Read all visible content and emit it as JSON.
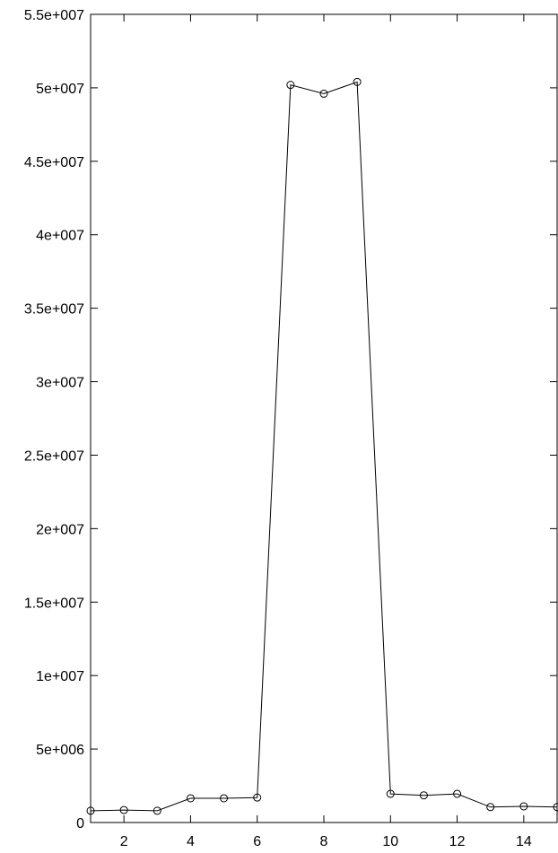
{
  "chart_data": {
    "type": "line",
    "title": "",
    "xlabel": "",
    "ylabel": "",
    "xlim": [
      1,
      15
    ],
    "ylim": [
      0,
      55000000
    ],
    "grid": false,
    "marker": "open-circle",
    "line_color": "#000000",
    "x_ticks": [
      {
        "value": 2,
        "label": "2"
      },
      {
        "value": 4,
        "label": "4"
      },
      {
        "value": 6,
        "label": "6"
      },
      {
        "value": 8,
        "label": "8"
      },
      {
        "value": 10,
        "label": "10"
      },
      {
        "value": 12,
        "label": "12"
      },
      {
        "value": 14,
        "label": "14"
      }
    ],
    "y_ticks": [
      {
        "value": 0,
        "label": "0"
      },
      {
        "value": 5000000,
        "label": "5e+006"
      },
      {
        "value": 10000000,
        "label": "1e+007"
      },
      {
        "value": 15000000,
        "label": "1.5e+007"
      },
      {
        "value": 20000000,
        "label": "2e+007"
      },
      {
        "value": 25000000,
        "label": "2.5e+007"
      },
      {
        "value": 30000000,
        "label": "3e+007"
      },
      {
        "value": 35000000,
        "label": "3.5e+007"
      },
      {
        "value": 40000000,
        "label": "4e+007"
      },
      {
        "value": 45000000,
        "label": "4.5e+007"
      },
      {
        "value": 50000000,
        "label": "5e+007"
      },
      {
        "value": 55000000,
        "label": "5.5e+007"
      }
    ],
    "series": [
      {
        "x": [
          1,
          2,
          3,
          4,
          5,
          6,
          7,
          8,
          9,
          10,
          11,
          12,
          13,
          14,
          15
        ],
        "values": [
          800000,
          850000,
          800000,
          1650000,
          1650000,
          1700000,
          50200000,
          49600000,
          50400000,
          1950000,
          1850000,
          1950000,
          1050000,
          1100000,
          1050000
        ]
      }
    ]
  }
}
